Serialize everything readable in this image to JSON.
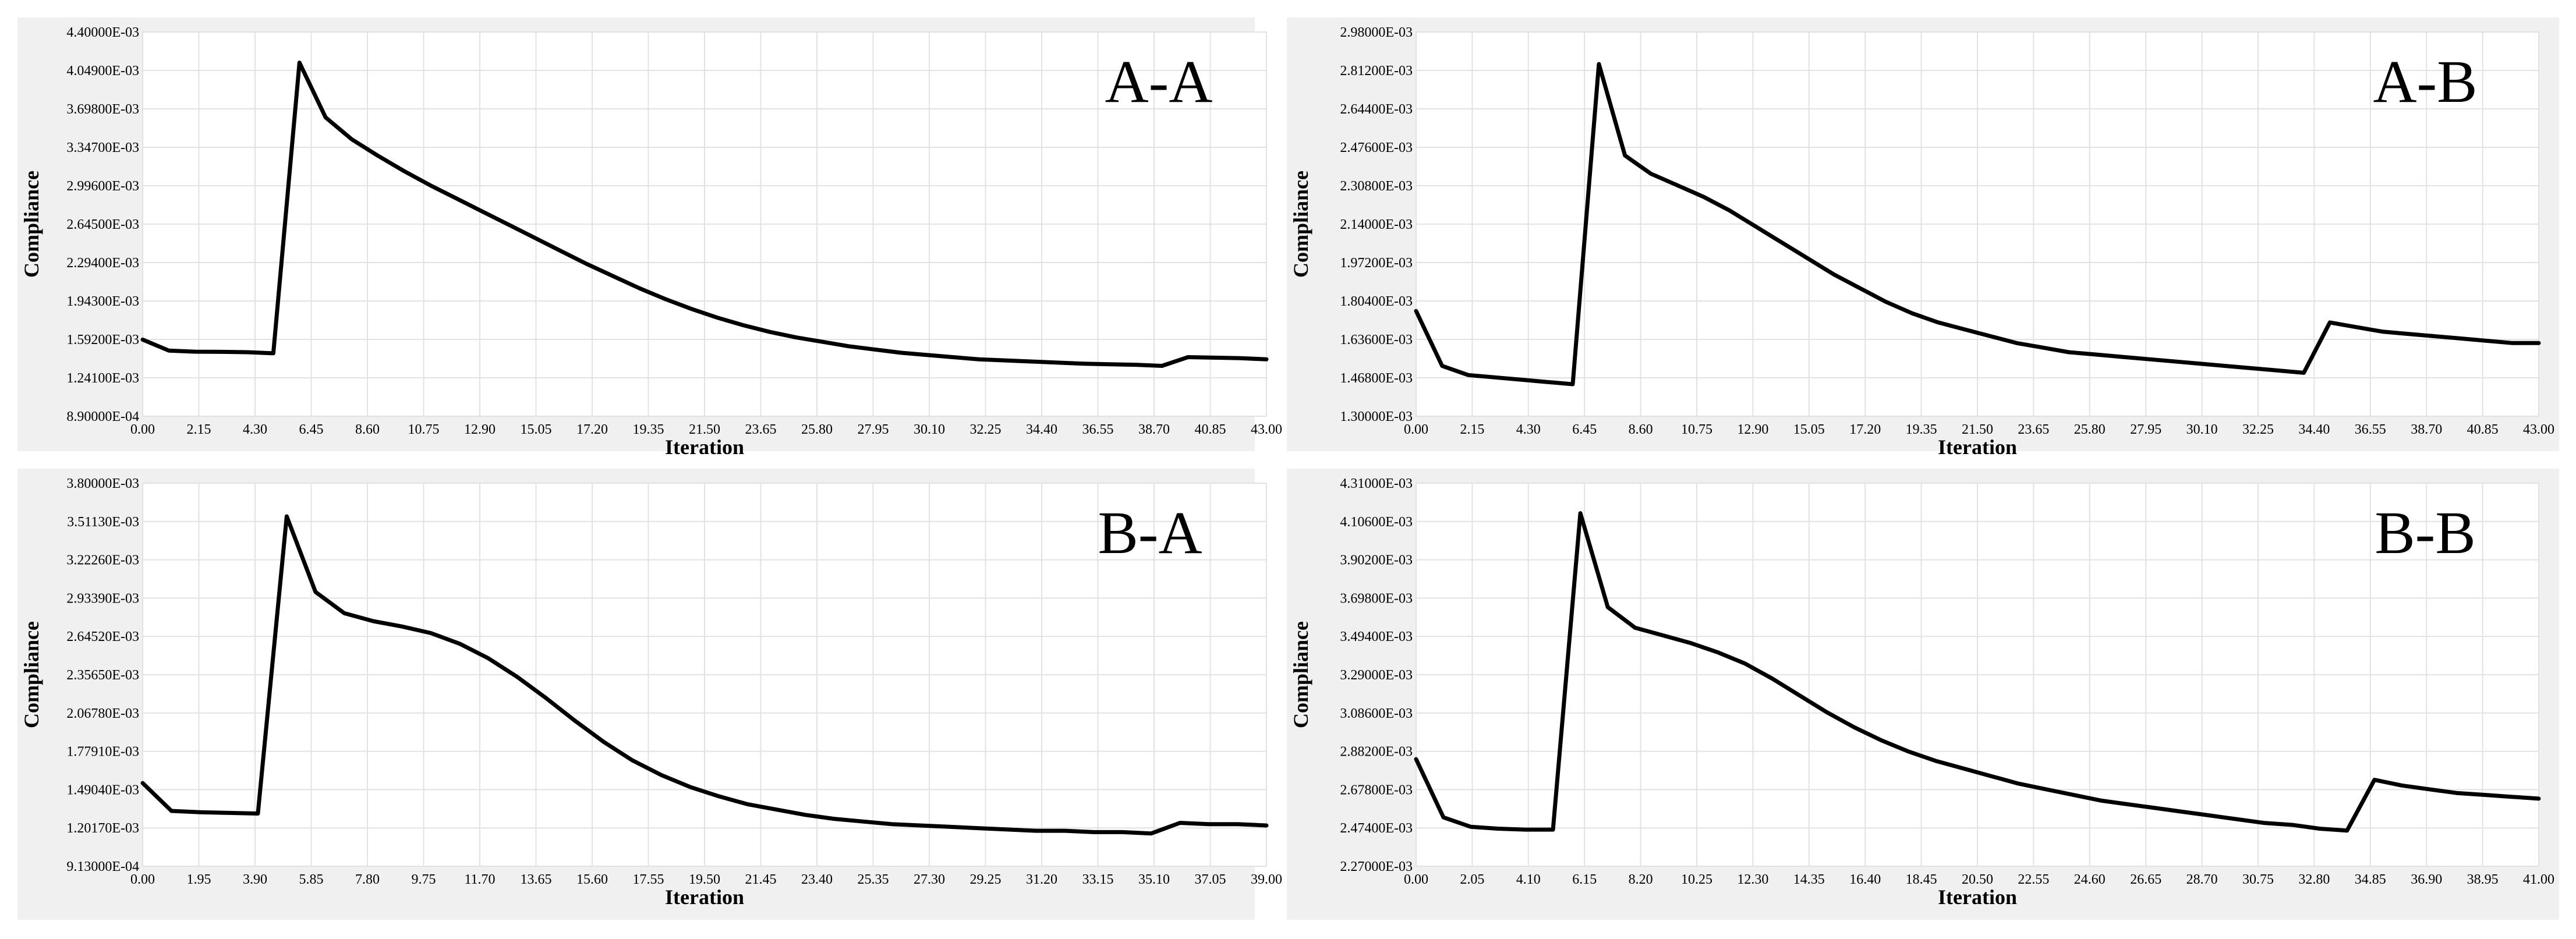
{
  "chart_data": [
    {
      "type": "line",
      "title": "A-A",
      "xlabel": "Iteration",
      "ylabel": "Compliance",
      "xlim": [
        0,
        43
      ],
      "ylim": [
        0.00089,
        0.0044
      ],
      "grid": true,
      "x_ticks": [
        "0.00",
        "2.15",
        "4.30",
        "6.45",
        "8.60",
        "10.75",
        "12.90",
        "15.05",
        "17.20",
        "19.35",
        "21.50",
        "23.65",
        "25.80",
        "27.95",
        "30.10",
        "32.25",
        "34.40",
        "36.55",
        "38.70",
        "40.85",
        "43.00"
      ],
      "y_ticks": [
        "8.90000E-04",
        "1.24100E-03",
        "1.59200E-03",
        "1.94300E-03",
        "2.29400E-03",
        "2.64500E-03",
        "2.99600E-03",
        "3.34700E-03",
        "3.69800E-03",
        "4.04900E-03",
        "4.40000E-03"
      ],
      "series": [
        {
          "x": [
            0,
            1,
            2,
            3,
            4,
            5,
            6,
            7,
            8,
            9,
            10,
            11,
            12,
            13,
            14,
            15,
            16,
            17,
            18,
            19,
            20,
            21,
            22,
            23,
            24,
            25,
            26,
            27,
            28,
            29,
            30,
            31,
            32,
            33,
            34,
            35,
            36,
            37,
            38,
            39,
            40,
            41,
            42,
            43
          ],
          "y": [
            0.00159,
            0.00149,
            0.00148,
            0.001478,
            0.001475,
            0.001465,
            0.00412,
            0.00362,
            0.00342,
            0.00327,
            0.00313,
            0.003,
            0.00288,
            0.00276,
            0.00264,
            0.00252,
            0.0024,
            0.00228,
            0.00217,
            0.00206,
            0.00196,
            0.00187,
            0.00179,
            0.00172,
            0.00166,
            0.00161,
            0.00157,
            0.00153,
            0.0015,
            0.00147,
            0.00145,
            0.00143,
            0.00141,
            0.0014,
            0.00139,
            0.00138,
            0.00137,
            0.001365,
            0.00136,
            0.00135,
            0.00143,
            0.001425,
            0.00142,
            0.00141
          ]
        }
      ]
    },
    {
      "type": "line",
      "title": "A-B",
      "xlabel": "Iteration",
      "ylabel": "Compliance",
      "xlim": [
        0,
        43
      ],
      "ylim": [
        0.0013,
        0.00298
      ],
      "grid": true,
      "x_ticks": [
        "0.00",
        "2.15",
        "4.30",
        "6.45",
        "8.60",
        "10.75",
        "12.90",
        "15.05",
        "17.20",
        "19.35",
        "21.50",
        "23.65",
        "25.80",
        "27.95",
        "30.10",
        "32.25",
        "34.40",
        "36.55",
        "38.70",
        "40.85",
        "43.00"
      ],
      "y_ticks": [
        "1.30000E-03",
        "1.46800E-03",
        "1.63600E-03",
        "1.80400E-03",
        "1.97200E-03",
        "2.14000E-03",
        "2.30800E-03",
        "2.47600E-03",
        "2.64400E-03",
        "2.81200E-03",
        "2.98000E-03"
      ],
      "series": [
        {
          "x": [
            0,
            1,
            2,
            3,
            4,
            5,
            6,
            7,
            8,
            9,
            10,
            11,
            12,
            13,
            14,
            15,
            16,
            17,
            18,
            19,
            20,
            21,
            22,
            23,
            24,
            25,
            26,
            27,
            28,
            29,
            30,
            31,
            32,
            33,
            34,
            35,
            36,
            37,
            38,
            39,
            40,
            41,
            42,
            43
          ],
          "y": [
            0.00176,
            0.00152,
            0.00148,
            0.00147,
            0.00146,
            0.00145,
            0.00144,
            0.00284,
            0.00244,
            0.00236,
            0.00231,
            0.00226,
            0.0022,
            0.00213,
            0.00206,
            0.00199,
            0.00192,
            0.00186,
            0.0018,
            0.00175,
            0.00171,
            0.00168,
            0.00165,
            0.00162,
            0.0016,
            0.00158,
            0.00157,
            0.00156,
            0.00155,
            0.00154,
            0.00153,
            0.00152,
            0.00151,
            0.0015,
            0.00149,
            0.00171,
            0.00169,
            0.00167,
            0.00166,
            0.00165,
            0.00164,
            0.00163,
            0.00162,
            0.00162
          ]
        }
      ]
    },
    {
      "type": "line",
      "title": "B-A",
      "xlabel": "Iteration",
      "ylabel": "Compliance",
      "xlim": [
        0,
        39
      ],
      "ylim": [
        0.000913,
        0.0038
      ],
      "grid": true,
      "x_ticks": [
        "0.00",
        "1.95",
        "3.90",
        "5.85",
        "7.80",
        "9.75",
        "11.70",
        "13.65",
        "15.60",
        "17.55",
        "19.50",
        "21.45",
        "23.40",
        "25.35",
        "27.30",
        "29.25",
        "31.20",
        "33.15",
        "35.10",
        "37.05",
        "39.00"
      ],
      "y_ticks": [
        "9.13000E-04",
        "1.20170E-03",
        "1.49040E-03",
        "1.77910E-03",
        "2.06780E-03",
        "2.35650E-03",
        "2.64520E-03",
        "2.93390E-03",
        "3.22260E-03",
        "3.51130E-03",
        "3.80000E-03"
      ],
      "series": [
        {
          "x": [
            0,
            1,
            2,
            3,
            4,
            5,
            6,
            7,
            8,
            9,
            10,
            11,
            12,
            13,
            14,
            15,
            16,
            17,
            18,
            19,
            20,
            21,
            22,
            23,
            24,
            25,
            26,
            27,
            28,
            29,
            30,
            31,
            32,
            33,
            34,
            35,
            36,
            37,
            38,
            39
          ],
          "y": [
            0.00154,
            0.00133,
            0.00132,
            0.001315,
            0.00131,
            0.00355,
            0.00298,
            0.00282,
            0.00276,
            0.00272,
            0.00267,
            0.00259,
            0.00248,
            0.00234,
            0.00218,
            0.00201,
            0.00185,
            0.00171,
            0.0016,
            0.00151,
            0.00144,
            0.00138,
            0.00134,
            0.0013,
            0.00127,
            0.00125,
            0.00123,
            0.00122,
            0.00121,
            0.0012,
            0.00119,
            0.00118,
            0.00118,
            0.00117,
            0.00117,
            0.00116,
            0.00124,
            0.00123,
            0.00123,
            0.00122
          ]
        }
      ]
    },
    {
      "type": "line",
      "title": "B-B",
      "xlabel": "Iteration",
      "ylabel": "Compliance",
      "xlim": [
        0,
        41
      ],
      "ylim": [
        0.00227,
        0.00431
      ],
      "grid": true,
      "x_ticks": [
        "0.00",
        "2.05",
        "4.10",
        "6.15",
        "8.20",
        "10.25",
        "12.30",
        "14.35",
        "16.40",
        "18.45",
        "20.50",
        "22.55",
        "24.60",
        "26.65",
        "28.70",
        "30.75",
        "32.80",
        "34.85",
        "36.90",
        "38.95",
        "41.00"
      ],
      "y_ticks": [
        "2.27000E-03",
        "2.47400E-03",
        "2.67800E-03",
        "2.88200E-03",
        "3.08600E-03",
        "3.29000E-03",
        "3.49400E-03",
        "3.69800E-03",
        "3.90200E-03",
        "4.10600E-03",
        "4.31000E-03"
      ],
      "series": [
        {
          "x": [
            0,
            1,
            2,
            3,
            4,
            5,
            6,
            7,
            8,
            9,
            10,
            11,
            12,
            13,
            14,
            15,
            16,
            17,
            18,
            19,
            20,
            21,
            22,
            23,
            24,
            25,
            26,
            27,
            28,
            29,
            30,
            31,
            32,
            33,
            34,
            35,
            36,
            37,
            38,
            39,
            40,
            41
          ],
          "y": [
            0.00284,
            0.00253,
            0.00248,
            0.00247,
            0.002465,
            0.002465,
            0.00415,
            0.00365,
            0.00354,
            0.0035,
            0.00346,
            0.00341,
            0.00335,
            0.00327,
            0.00318,
            0.00309,
            0.00301,
            0.00294,
            0.00288,
            0.00283,
            0.00279,
            0.00275,
            0.00271,
            0.00268,
            0.00265,
            0.00262,
            0.0026,
            0.00258,
            0.00256,
            0.00254,
            0.00252,
            0.0025,
            0.00249,
            0.00247,
            0.00246,
            0.00273,
            0.0027,
            0.00268,
            0.00266,
            0.00265,
            0.00264,
            0.00263
          ]
        }
      ]
    }
  ]
}
